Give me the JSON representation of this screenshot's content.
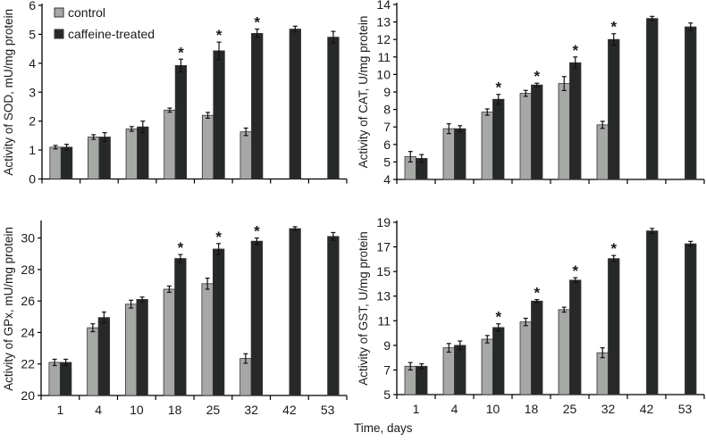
{
  "colors": {
    "control": "#a6a8a6",
    "treated": "#262927",
    "outline": "#333333"
  },
  "legend": {
    "placement": "top-left of first panel",
    "entries": [
      "control",
      "caffeine-treated"
    ]
  },
  "xlabel": "Time, days",
  "chart_data": [
    {
      "type": "bar",
      "ylabel": "Activity of SOD, mU/mg protein",
      "categories": [
        "1",
        "4",
        "10",
        "18",
        "25",
        "32",
        "42",
        "53"
      ],
      "ylim": [
        0,
        6
      ],
      "yticks": [
        0,
        1,
        2,
        3,
        4,
        5,
        6
      ],
      "show_xticklabels": false,
      "series": [
        {
          "name": "control",
          "values": [
            1.1,
            1.45,
            1.73,
            2.38,
            2.2,
            1.63,
            null,
            null
          ],
          "errors": [
            0.06,
            0.08,
            0.08,
            0.07,
            0.1,
            0.13,
            null,
            null
          ]
        },
        {
          "name": "caffeine-treated",
          "values": [
            1.1,
            1.45,
            1.8,
            3.92,
            4.43,
            5.03,
            5.18,
            4.9
          ],
          "errors": [
            0.1,
            0.15,
            0.2,
            0.22,
            0.3,
            0.15,
            0.1,
            0.2
          ]
        }
      ],
      "significant": [
        false,
        false,
        false,
        true,
        true,
        true,
        false,
        false
      ]
    },
    {
      "type": "bar",
      "ylabel": "Activity of CAT, U/mg protein",
      "categories": [
        "1",
        "4",
        "10",
        "18",
        "25",
        "32",
        "42",
        "53"
      ],
      "ylim": [
        4,
        14
      ],
      "yticks": [
        4,
        5,
        6,
        7,
        8,
        9,
        10,
        11,
        12,
        13,
        14
      ],
      "show_xticklabels": false,
      "series": [
        {
          "name": "control",
          "values": [
            5.3,
            6.9,
            7.85,
            8.92,
            9.48,
            7.12,
            null,
            null
          ],
          "errors": [
            0.3,
            0.28,
            0.18,
            0.17,
            0.4,
            0.2,
            null,
            null
          ]
        },
        {
          "name": "caffeine-treated",
          "values": [
            5.2,
            6.9,
            8.58,
            9.4,
            10.67,
            12.0,
            13.2,
            12.72
          ],
          "errors": [
            0.22,
            0.17,
            0.28,
            0.1,
            0.33,
            0.33,
            0.12,
            0.22
          ]
        }
      ],
      "significant": [
        false,
        false,
        true,
        true,
        true,
        true,
        false,
        false
      ]
    },
    {
      "type": "bar",
      "ylabel": "Activity of GPx, mU/mg protein",
      "categories": [
        "1",
        "4",
        "10",
        "18",
        "25",
        "32",
        "42",
        "53"
      ],
      "ylim": [
        20,
        31
      ],
      "yticks": [
        20,
        22,
        24,
        26,
        28,
        30
      ],
      "show_xticklabels": true,
      "series": [
        {
          "name": "control",
          "values": [
            22.1,
            24.3,
            25.8,
            26.75,
            27.1,
            22.35,
            null,
            null
          ],
          "errors": [
            0.2,
            0.25,
            0.25,
            0.2,
            0.35,
            0.3,
            null,
            null
          ]
        },
        {
          "name": "caffeine-treated",
          "values": [
            22.1,
            24.95,
            26.1,
            28.7,
            29.3,
            29.8,
            30.6,
            30.1
          ],
          "errors": [
            0.2,
            0.35,
            0.15,
            0.25,
            0.35,
            0.2,
            0.12,
            0.25
          ]
        }
      ],
      "significant": [
        false,
        false,
        false,
        true,
        true,
        true,
        false,
        false
      ]
    },
    {
      "type": "bar",
      "ylabel": "Activity of GST, U/mg protein",
      "categories": [
        "1",
        "4",
        "10",
        "18",
        "25",
        "32",
        "42",
        "53"
      ],
      "ylim": [
        5,
        19
      ],
      "yticks": [
        5,
        7,
        9,
        11,
        13,
        15,
        17,
        19
      ],
      "show_xticklabels": true,
      "series": [
        {
          "name": "control",
          "values": [
            7.3,
            8.8,
            9.5,
            10.9,
            11.9,
            8.4,
            null,
            null
          ],
          "errors": [
            0.3,
            0.35,
            0.3,
            0.3,
            0.2,
            0.4,
            null,
            null
          ]
        },
        {
          "name": "caffeine-treated",
          "values": [
            7.3,
            9.0,
            10.45,
            12.6,
            14.3,
            16.05,
            18.3,
            17.25
          ],
          "errors": [
            0.2,
            0.35,
            0.3,
            0.12,
            0.2,
            0.25,
            0.2,
            0.2
          ]
        }
      ],
      "significant": [
        false,
        false,
        true,
        true,
        true,
        true,
        false,
        false
      ]
    }
  ]
}
